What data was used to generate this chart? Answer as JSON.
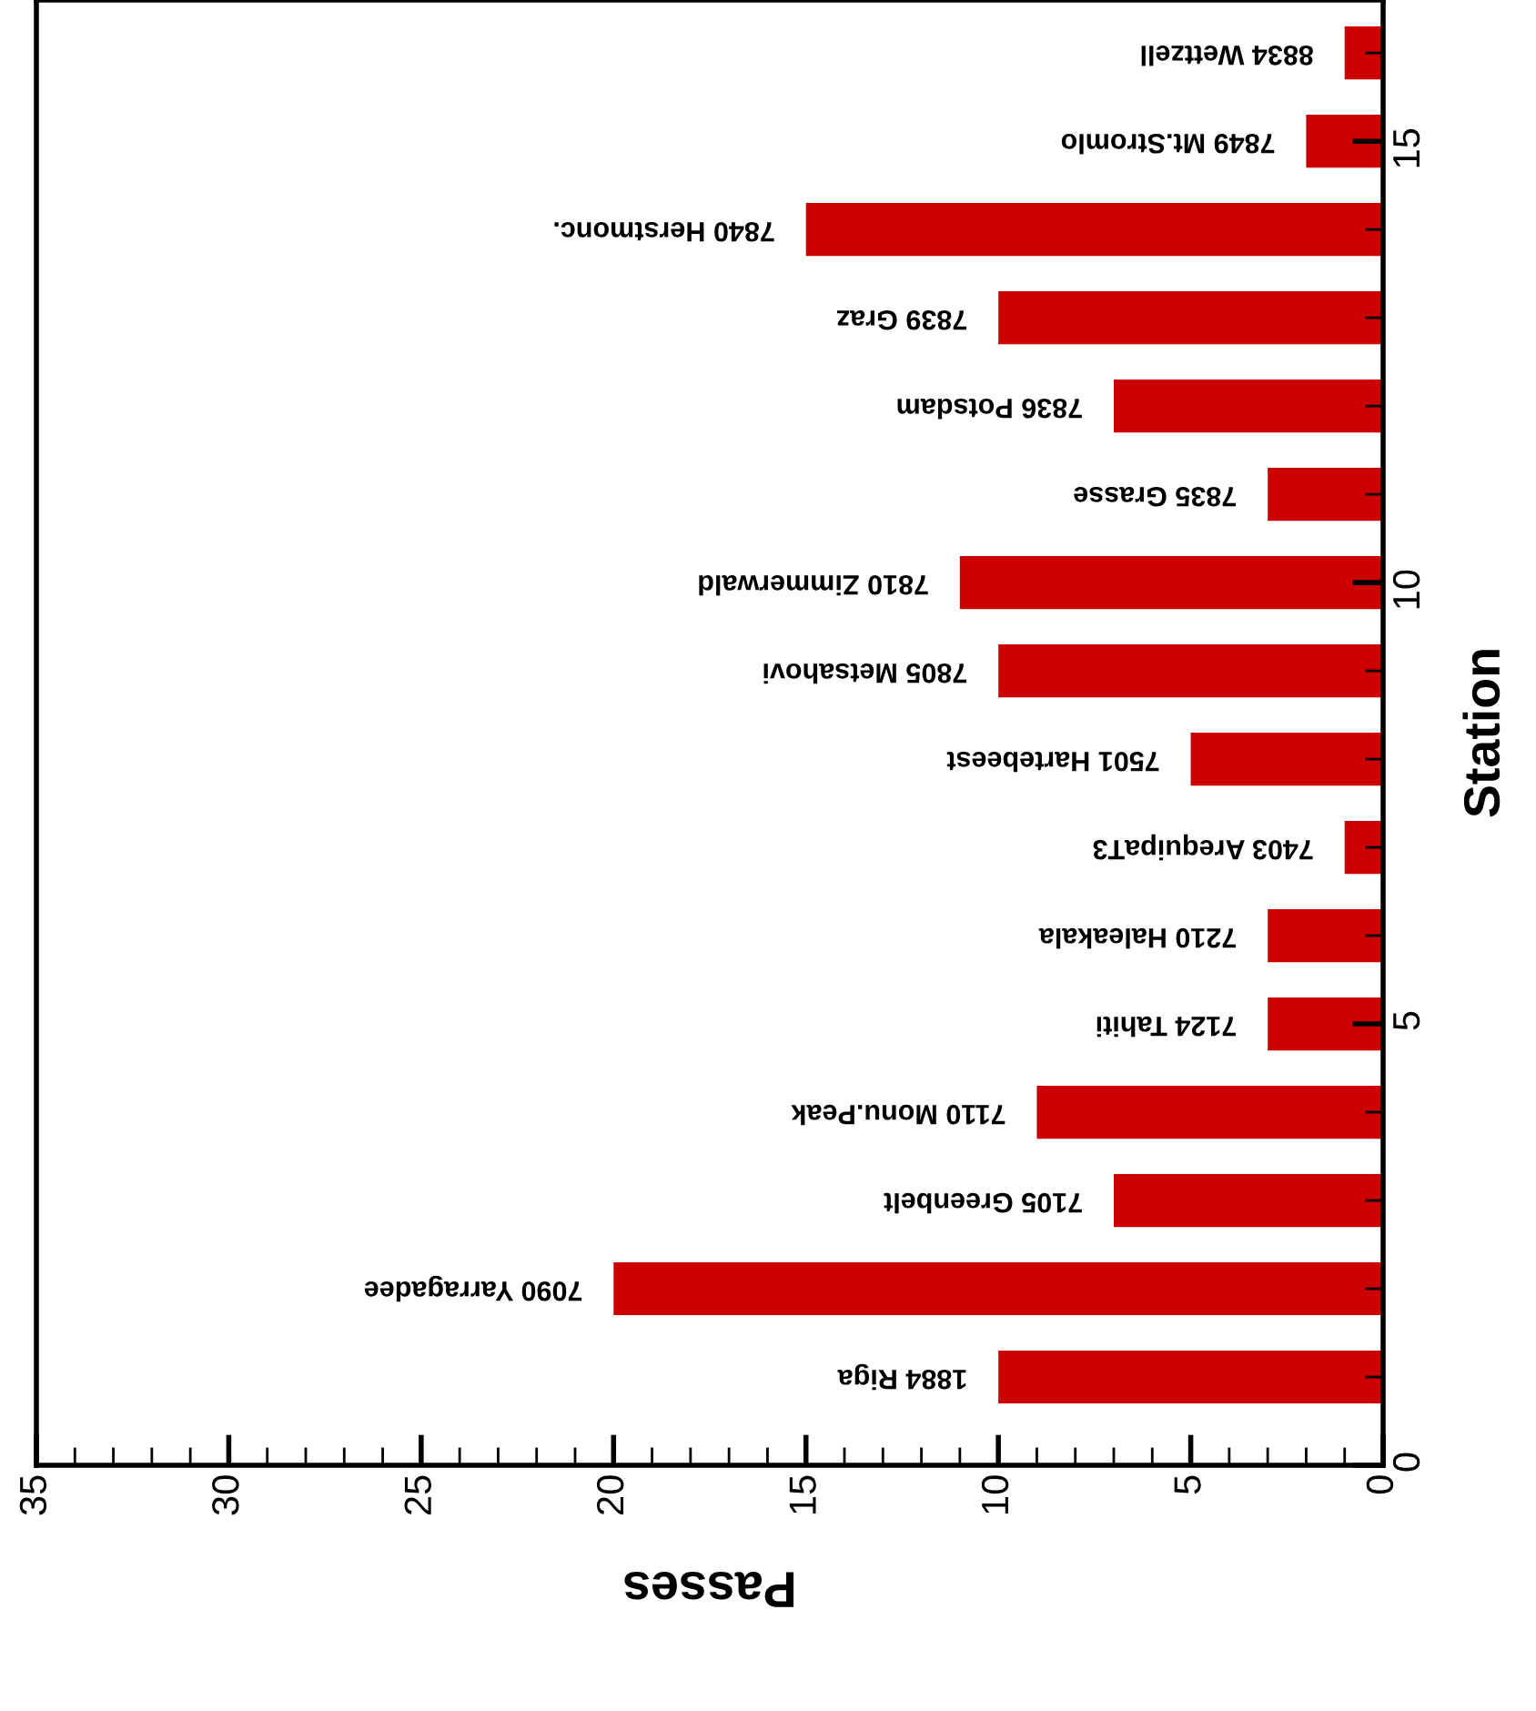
{
  "chart_data": {
    "type": "bar",
    "orientation": "horizontal",
    "xlabel": "Passes",
    "ylabel": "Station",
    "x": [
      1,
      2,
      3,
      4,
      5,
      6,
      7,
      8,
      9,
      10,
      11,
      12,
      13,
      14,
      15,
      16
    ],
    "values": [
      10,
      20,
      7,
      9,
      3,
      3,
      1,
      5,
      10,
      11,
      3,
      7,
      10,
      15,
      2,
      1
    ],
    "annotations": [
      {
        "text": "1884 Riga",
        "x": 10,
        "y": 1
      },
      {
        "text": "7090 Yarragadee",
        "x": 20,
        "y": 2
      },
      {
        "text": "7105 Greenbelt",
        "x": 7,
        "y": 3
      },
      {
        "text": "7110 Monu.Peak",
        "x": 9,
        "y": 4
      },
      {
        "text": "7124 Tahiti",
        "x": 3,
        "y": 5
      },
      {
        "text": "7210 Haleakala",
        "x": 3,
        "y": 6
      },
      {
        "text": "7403 ArequipaT3",
        "x": 1,
        "y": 7
      },
      {
        "text": "7501 Hartebeest",
        "x": 5,
        "y": 8
      },
      {
        "text": "7805 Metsahovi",
        "x": 10,
        "y": 9
      },
      {
        "text": "7810 Zimmerwald",
        "x": 11,
        "y": 10
      },
      {
        "text": "7835 Grasse",
        "x": 3,
        "y": 11
      },
      {
        "text": "7836 Potsdam",
        "x": 7,
        "y": 12
      },
      {
        "text": "7839 Graz",
        "x": 10,
        "y": 13
      },
      {
        "text": "7840 Herstmonc.",
        "x": 15,
        "y": 14
      },
      {
        "text": "7849 Mt.Stromlo",
        "x": 2,
        "y": 15
      },
      {
        "text": "8834 Wettzell",
        "x": 1,
        "y": 16
      }
    ],
    "color": "#cc0000",
    "xlim": [
      35,
      0
    ],
    "xticks": [
      0,
      5,
      10,
      15,
      20,
      25,
      30,
      35
    ],
    "ylim": [
      0,
      16.6
    ],
    "yticks": [
      0,
      5,
      10,
      15
    ]
  }
}
